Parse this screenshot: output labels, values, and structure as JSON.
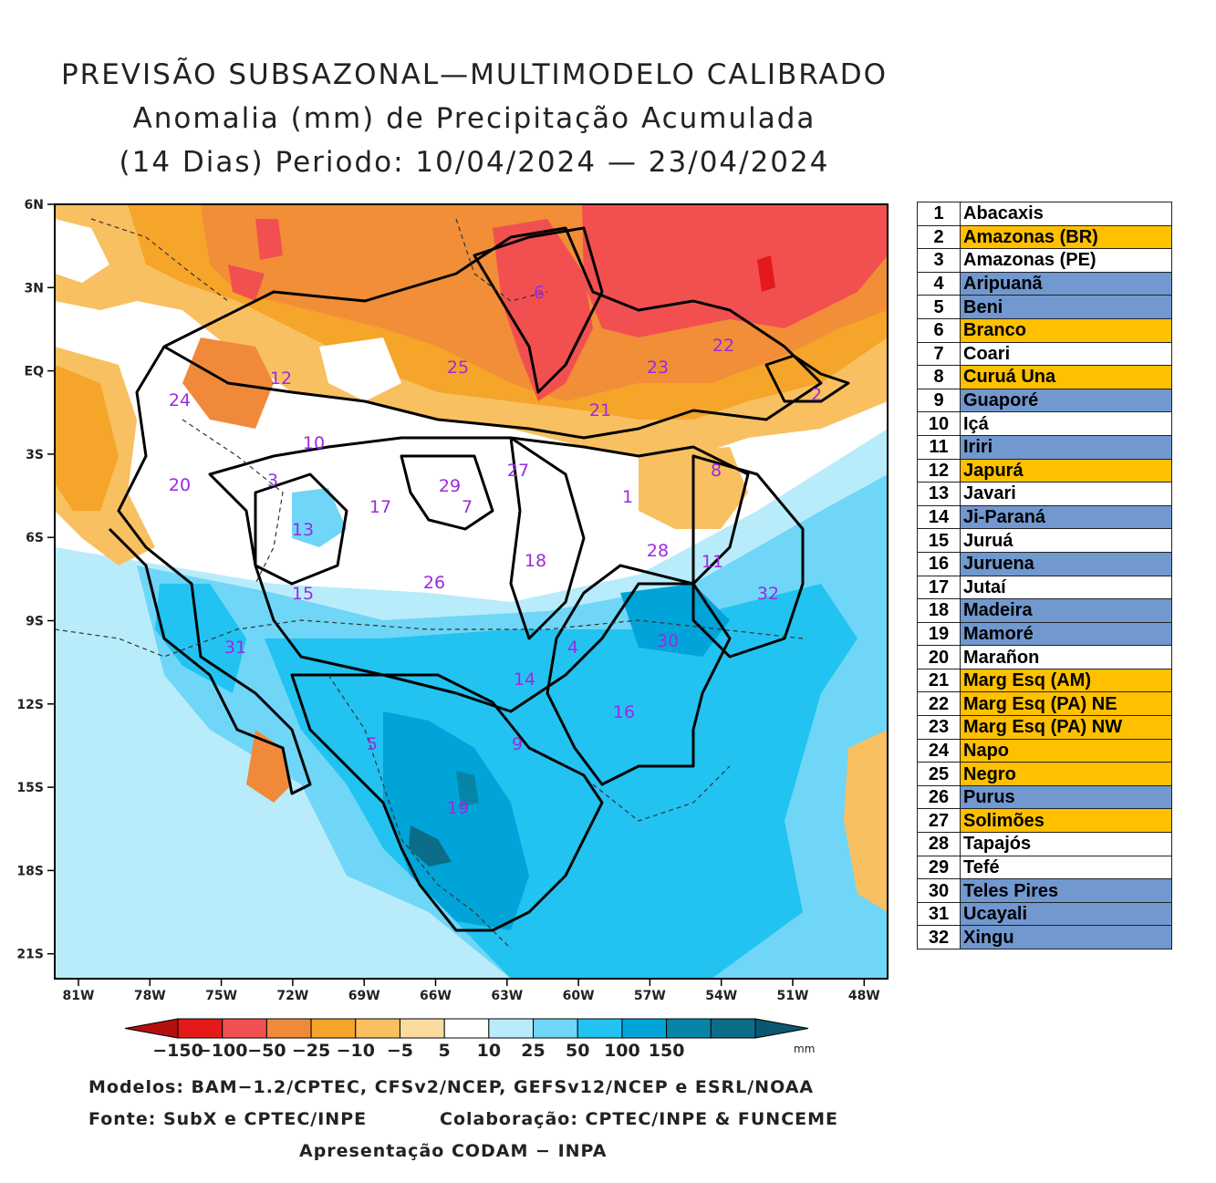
{
  "title": {
    "line1": "PREVISÃO SUBSAZONAL—MULTIMODELO CALIBRADO",
    "line2": "Anomalia (mm) de Precipitação Acumulada",
    "line3": "(14 Dias) Periodo: 10/04/2024 — 23/04/2024"
  },
  "map": {
    "lat_labels": [
      "6N",
      "3N",
      "EQ",
      "3S",
      "6S",
      "9S",
      "12S",
      "15S",
      "18S",
      "21S"
    ],
    "lon_labels": [
      "81W",
      "78W",
      "75W",
      "72W",
      "69W",
      "66W",
      "63W",
      "60W",
      "57W",
      "54W",
      "51W",
      "48W"
    ],
    "basin_numbers": [
      "1",
      "2",
      "3",
      "4",
      "5",
      "6",
      "7",
      "8",
      "9",
      "10",
      "11",
      "12",
      "13",
      "14",
      "15",
      "16",
      "17",
      "18",
      "19",
      "20",
      "21",
      "22",
      "23",
      "24",
      "25",
      "26",
      "27",
      "28",
      "29",
      "30",
      "31",
      "32"
    ]
  },
  "colorbar": {
    "labels": [
      "−150",
      "−100",
      "−50",
      "−25",
      "−10",
      "−5",
      "5",
      "10",
      "25",
      "50",
      "100",
      "150"
    ],
    "unit": "mm",
    "colors": [
      "#b40f0f",
      "#e41a1a",
      "#f25050",
      "#f08a3a",
      "#f5a52a",
      "#f8c060",
      "#fbdc9e",
      "#ffffff",
      "#b8ecfb",
      "#6fd6f7",
      "#22c3f1",
      "#00a4d8",
      "#0785a8",
      "#0b6d88",
      "#0a5870"
    ]
  },
  "legend": {
    "rows": [
      {
        "num": "1",
        "name": "Abacaxis",
        "color": "#ffffff"
      },
      {
        "num": "2",
        "name": "Amazonas (BR)",
        "color": "#ffc000"
      },
      {
        "num": "3",
        "name": "Amazonas (PE)",
        "color": "#ffffff"
      },
      {
        "num": "4",
        "name": "Aripuanã",
        "color": "#7198cf"
      },
      {
        "num": "5",
        "name": "Beni",
        "color": "#7198cf"
      },
      {
        "num": "6",
        "name": "Branco",
        "color": "#ffc000"
      },
      {
        "num": "7",
        "name": "Coari",
        "color": "#ffffff"
      },
      {
        "num": "8",
        "name": "Curuá Una",
        "color": "#ffc000"
      },
      {
        "num": "9",
        "name": "Guaporé",
        "color": "#7198cf"
      },
      {
        "num": "10",
        "name": "Içá",
        "color": "#ffffff"
      },
      {
        "num": "11",
        "name": "Iriri",
        "color": "#7198cf"
      },
      {
        "num": "12",
        "name": "Japurá",
        "color": "#ffc000"
      },
      {
        "num": "13",
        "name": "Javari",
        "color": "#ffffff"
      },
      {
        "num": "14",
        "name": "Ji-Paraná",
        "color": "#7198cf"
      },
      {
        "num": "15",
        "name": "Juruá",
        "color": "#ffffff"
      },
      {
        "num": "16",
        "name": "Juruena",
        "color": "#7198cf"
      },
      {
        "num": "17",
        "name": "Jutaí",
        "color": "#ffffff"
      },
      {
        "num": "18",
        "name": "Madeira",
        "color": "#7198cf"
      },
      {
        "num": "19",
        "name": "Mamoré",
        "color": "#7198cf"
      },
      {
        "num": "20",
        "name": "Marañon",
        "color": "#ffffff"
      },
      {
        "num": "21",
        "name": "Marg Esq (AM)",
        "color": "#ffc000"
      },
      {
        "num": "22",
        "name": "Marg Esq (PA) NE",
        "color": "#ffc000"
      },
      {
        "num": "23",
        "name": "Marg Esq (PA) NW",
        "color": "#ffc000"
      },
      {
        "num": "24",
        "name": "Napo",
        "color": "#ffc000"
      },
      {
        "num": "25",
        "name": "Negro",
        "color": "#ffc000"
      },
      {
        "num": "26",
        "name": "Purus",
        "color": "#7198cf"
      },
      {
        "num": "27",
        "name": "Solimões",
        "color": "#ffc000"
      },
      {
        "num": "28",
        "name": "Tapajós",
        "color": "#ffffff"
      },
      {
        "num": "29",
        "name": "Tefé",
        "color": "#ffffff"
      },
      {
        "num": "30",
        "name": "Teles Pires",
        "color": "#7198cf"
      },
      {
        "num": "31",
        "name": "Ucayali",
        "color": "#7198cf"
      },
      {
        "num": "32",
        "name": "Xingu",
        "color": "#7198cf"
      }
    ]
  },
  "footer": {
    "models": "Modelos: BAM−1.2/CPTEC, CFSv2/NCEP, GEFSv12/NCEP e ESRL/NOAA",
    "source": "Fonte: SubX e CPTEC/INPE",
    "collab": "Colaboração: CPTEC/INPE & FUNCEME",
    "presentation": "Apresentação CODAM − INPA"
  }
}
